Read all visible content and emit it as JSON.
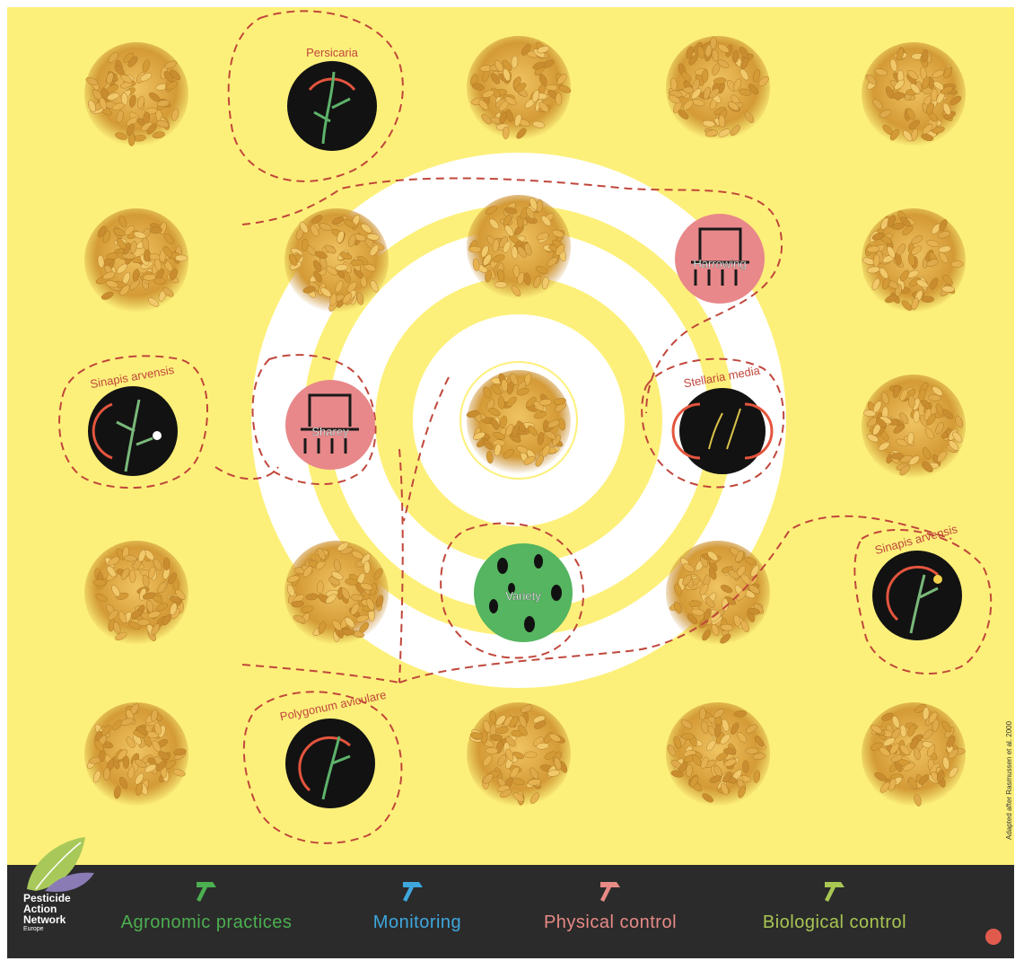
{
  "diagram": {
    "weeds": [
      {
        "id": "persicaria",
        "name": "Persicaria"
      },
      {
        "id": "sinapis-left",
        "name": "Sinapis arvensis"
      },
      {
        "id": "stellaria",
        "name": "Stellaria media"
      },
      {
        "id": "sinapis-right",
        "name": "Sinapis arvensis"
      },
      {
        "id": "polygonum",
        "name": "Polygonum aviculare"
      }
    ],
    "practices": [
      {
        "id": "harrowing",
        "label": "Harrowing",
        "category": "physical"
      },
      {
        "id": "sharey",
        "label": "Sharey",
        "category": "physical"
      },
      {
        "id": "variety",
        "label": "Variety",
        "category": "agronomic"
      }
    ],
    "credit": "Adapted after Rasmussen et al. 2000"
  },
  "legend": {
    "logo_lines": [
      "Pesticide",
      "Action",
      "Network",
      "Europe"
    ],
    "items": [
      {
        "id": "agronomic",
        "label": "Agronomic practices",
        "color": "#4caf50"
      },
      {
        "id": "monitoring",
        "label": "Monitoring",
        "color": "#3ea7de"
      },
      {
        "id": "physical",
        "label": "Physical control",
        "color": "#e88a86"
      },
      {
        "id": "biological",
        "label": "Biological control",
        "color": "#a9c653"
      }
    ]
  },
  "colors": {
    "background": "#fdf07a",
    "ring": "#ffffff",
    "dashed": "#c0473b",
    "weed_circle": "#121212",
    "physical_circle": "#e8888a",
    "variety_circle": "#55b560",
    "grain": "#d9a441"
  }
}
